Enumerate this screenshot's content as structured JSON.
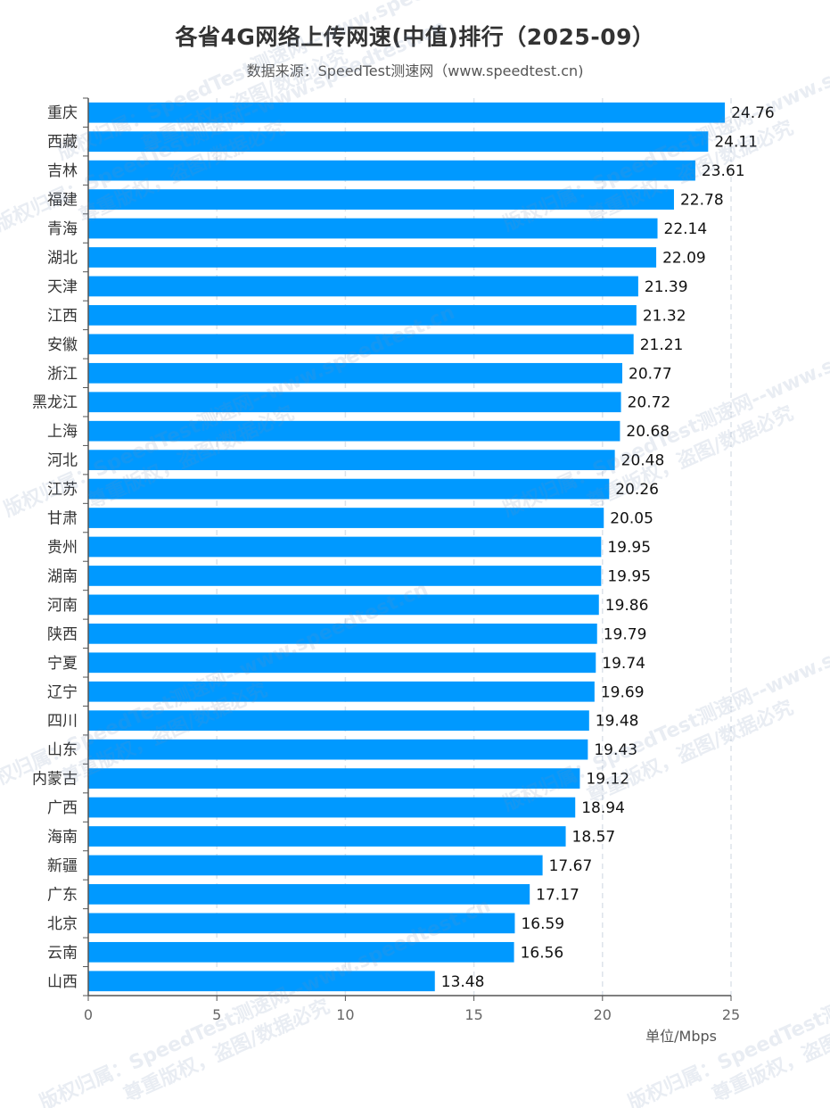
{
  "title": "各省4G网络上传网速(中值)排行（2025-09）",
  "subtitle": "数据来源：SpeedTest测速网（www.speedtest.cn)",
  "watermark": {
    "line1": "版权归属：SpeedTest测速网--www.speedtest.cn",
    "line2": "尊重版权，盗图/数据必究"
  },
  "colors": {
    "bar": "#0099ff",
    "axis": "#555555",
    "grid": "#dde3ea",
    "label": "#111111",
    "tick": "#666666"
  },
  "chart_data": {
    "type": "bar",
    "orientation": "horizontal",
    "categories": [
      "重庆",
      "西藏",
      "吉林",
      "福建",
      "青海",
      "湖北",
      "天津",
      "江西",
      "安徽",
      "浙江",
      "黑龙江",
      "上海",
      "河北",
      "江苏",
      "甘肃",
      "贵州",
      "湖南",
      "河南",
      "陕西",
      "宁夏",
      "辽宁",
      "四川",
      "山东",
      "内蒙古",
      "广西",
      "海南",
      "新疆",
      "广东",
      "北京",
      "云南",
      "山西"
    ],
    "values": [
      24.76,
      24.11,
      23.61,
      22.78,
      22.14,
      22.09,
      21.39,
      21.32,
      21.21,
      20.77,
      20.72,
      20.68,
      20.48,
      20.26,
      20.05,
      19.95,
      19.95,
      19.86,
      19.79,
      19.74,
      19.69,
      19.48,
      19.43,
      19.12,
      18.94,
      18.57,
      17.67,
      17.17,
      16.59,
      16.56,
      13.48
    ],
    "value_labels": [
      "24.76",
      "24.11",
      "23.61",
      "22.78",
      "22.14",
      "22.09",
      "21.39",
      "21.32",
      "21.21",
      "20.77",
      "20.72",
      "20.68",
      "20.48",
      "20.26",
      "20.05",
      "19.95",
      "19.95",
      "19.86",
      "19.79",
      "19.74",
      "19.69",
      "19.48",
      "19.43",
      "19.12",
      "18.94",
      "18.57",
      "17.67",
      "17.17",
      "16.59",
      "16.56",
      "13.48"
    ],
    "xlim": [
      0,
      25
    ],
    "xticks": [
      "0",
      "5",
      "10",
      "15",
      "20",
      "25"
    ],
    "xlabel": "单位/Mbps",
    "ylabel": "",
    "grid": "vertical dashed"
  }
}
